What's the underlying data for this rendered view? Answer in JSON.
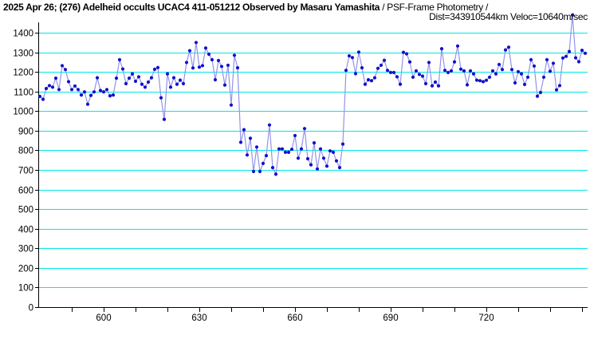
{
  "title": {
    "bold": "2025 Apr 26; (276) Adelheid occults UCAC4 411-051212 Observed by Masaru Yamashita",
    "regular": " / PSF-Frame Photometry /",
    "subtitle": "Dist=343910544km Veloc=10640m/sec"
  },
  "colors": {
    "background": "#ffffff",
    "grid": "#00e8e8",
    "axis": "#000000",
    "line": "#9393ea",
    "point": "#1111cc",
    "text": "#000000"
  },
  "chart_data": {
    "type": "line",
    "title": "2025 Apr 26; (276) Adelheid occults UCAC4 411-051212 Observed by Masaru Yamashita / PSF-Frame Photometry /",
    "subtitle": "Dist=343910544km Veloc=10640m/sec",
    "xlabel": "",
    "ylabel": "",
    "xlim": [
      579.5,
      751.75
    ],
    "ylim": [
      0,
      1400
    ],
    "y_ticks": [
      0,
      100,
      200,
      300,
      400,
      500,
      600,
      700,
      800,
      900,
      1000,
      1100,
      1200,
      1300,
      1400
    ],
    "x_ticks_labeled": [
      600,
      630,
      660,
      690,
      720
    ],
    "x_tick_minor_start": 590,
    "x_tick_minor_end": 750,
    "x_tick_minor_step": 10,
    "grid": "horizontal",
    "legend": "none",
    "marker": "dot",
    "notes": "occultation drop between x=643 and x=675; off-scale spike near x=747",
    "x_start": 580,
    "x_step": 1,
    "values": [
      1075,
      1060,
      1115,
      1130,
      1122,
      1168,
      1110,
      1232,
      1212,
      1150,
      1110,
      1128,
      1110,
      1082,
      1098,
      1035,
      1080,
      1098,
      1170,
      1105,
      1098,
      1110,
      1078,
      1082,
      1168,
      1262,
      1215,
      1140,
      1168,
      1190,
      1152,
      1175,
      1137,
      1122,
      1148,
      1170,
      1213,
      1222,
      1068,
      958,
      1190,
      1122,
      1170,
      1137,
      1158,
      1140,
      1248,
      1308,
      1220,
      1350,
      1224,
      1232,
      1322,
      1290,
      1262,
      1160,
      1258,
      1228,
      1133,
      1234,
      1031,
      1285,
      1221,
      841,
      905,
      776,
      861,
      692,
      817,
      692,
      733,
      773,
      929,
      712,
      678,
      807,
      807,
      790,
      790,
      805,
      875,
      760,
      807,
      911,
      757,
      726,
      838,
      705,
      807,
      760,
      719,
      797,
      790,
      746,
      712,
      832,
      1208,
      1282,
      1273,
      1191,
      1301,
      1221,
      1137,
      1160,
      1155,
      1170,
      1218,
      1234,
      1259,
      1208,
      1197,
      1197,
      1175,
      1137,
      1300,
      1292,
      1251,
      1173,
      1205,
      1187,
      1178,
      1140,
      1248,
      1129,
      1148,
      1129,
      1318,
      1208,
      1197,
      1205,
      1251,
      1332,
      1214,
      1205,
      1134,
      1205,
      1190,
      1158,
      1155,
      1150,
      1157,
      1173,
      1205,
      1190,
      1238,
      1212,
      1312,
      1326,
      1212,
      1144,
      1201,
      1190,
      1136,
      1173,
      1262,
      1230,
      1076,
      1095,
      1173,
      1262,
      1203,
      1244,
      1108,
      1130,
      1271,
      1279,
      1304,
      1490,
      1272,
      1252,
      1310,
      1295
    ]
  }
}
